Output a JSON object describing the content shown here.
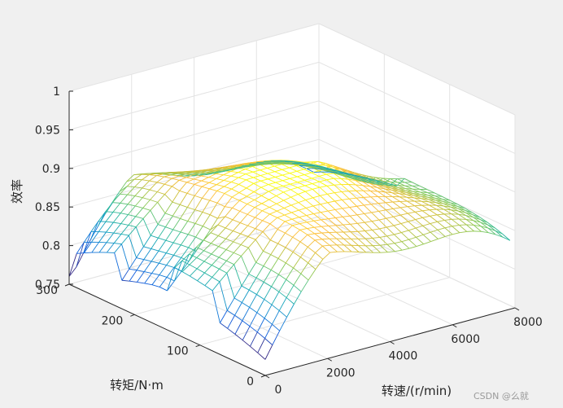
{
  "chart_data": {
    "type": "surface",
    "xlabel": "转速/(r/min)",
    "ylabel": "转矩/N·m",
    "zlabel": "效率",
    "xlim": [
      0,
      8000
    ],
    "ylim": [
      0,
      300
    ],
    "zlim": [
      0.75,
      1
    ],
    "xticks": [
      "0",
      "2000",
      "4000",
      "6000",
      "8000"
    ],
    "yticks": [
      "0",
      "100",
      "200",
      "300"
    ],
    "zticks": [
      "0.75",
      "0.8",
      "0.85",
      "0.9",
      "0.95",
      "1"
    ],
    "grid": true,
    "colormap": "parula",
    "surface": {
      "speed_samples": [
        0,
        500,
        1000,
        1500,
        2000,
        2500,
        3000,
        3500,
        4000,
        4500,
        5000,
        5500,
        6000,
        6500,
        7000,
        7500
      ],
      "torque_samples": [
        0,
        20,
        40,
        60,
        80,
        100,
        120,
        140,
        160,
        180,
        200,
        220,
        240,
        260,
        280,
        300
      ],
      "efficiency_peak": 0.91,
      "efficiency_edge": 0.78
    }
  },
  "watermark": "CSDN @么就"
}
